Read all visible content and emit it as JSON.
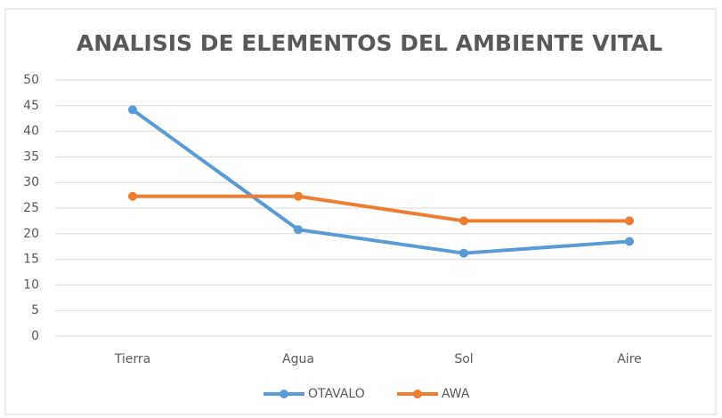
{
  "chart_data": {
    "type": "line",
    "title": "ANALISIS DE ELEMENTOS DEL AMBIENTE VITAL",
    "categories": [
      "Tierra",
      "Agua",
      "Sol",
      "Aire"
    ],
    "series": [
      {
        "name": "OTAVALO",
        "color": "#5b9bd5",
        "values": [
          44.2,
          20.8,
          16.2,
          18.5
        ]
      },
      {
        "name": "AWA",
        "color": "#ed7d31",
        "values": [
          27.3,
          27.3,
          22.5,
          22.5
        ]
      }
    ],
    "ylim": [
      0,
      50
    ],
    "yticks": [
      0,
      5,
      10,
      15,
      20,
      25,
      30,
      35,
      40,
      45,
      50
    ],
    "grid": true,
    "legend": "bottom"
  }
}
